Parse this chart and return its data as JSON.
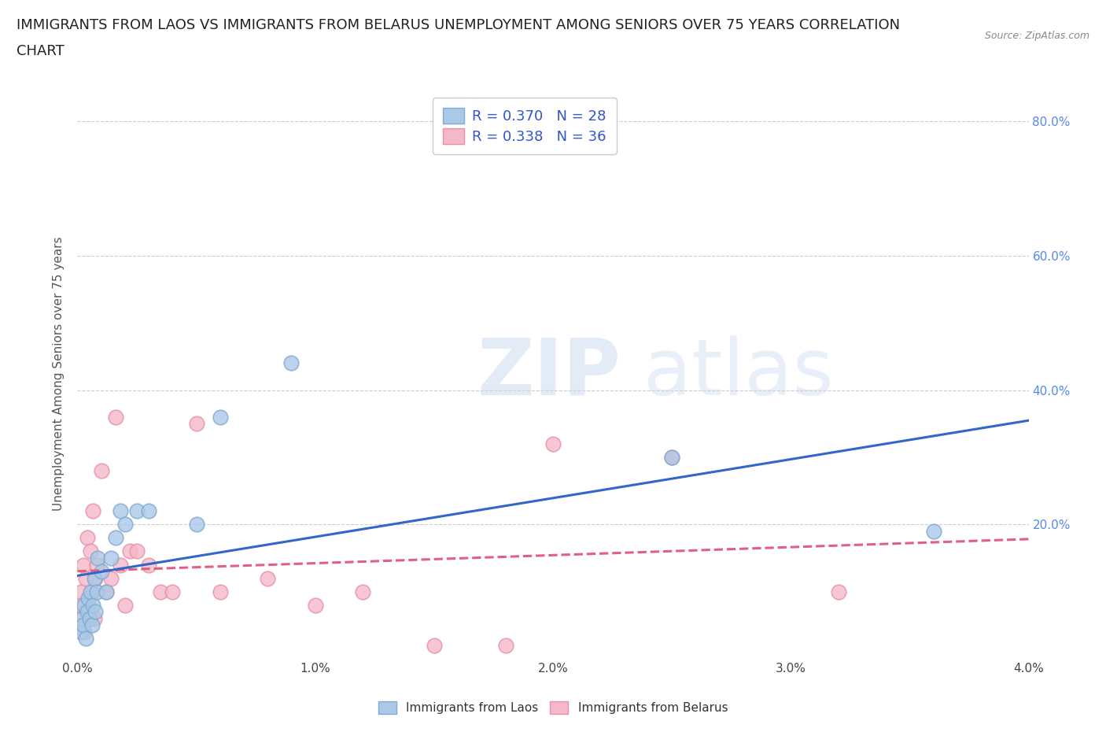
{
  "title_line1": "IMMIGRANTS FROM LAOS VS IMMIGRANTS FROM BELARUS UNEMPLOYMENT AMONG SENIORS OVER 75 YEARS CORRELATION",
  "title_line2": "CHART",
  "source": "Source: ZipAtlas.com",
  "ylabel": "Unemployment Among Seniors over 75 years",
  "xmin": 0.0,
  "xmax": 0.04,
  "ymin": 0.0,
  "ymax": 0.85,
  "xticks": [
    0.0,
    0.01,
    0.02,
    0.03,
    0.04
  ],
  "xtick_labels": [
    "0.0%",
    "1.0%",
    "2.0%",
    "3.0%",
    "4.0%"
  ],
  "yticks": [
    0.0,
    0.2,
    0.4,
    0.6,
    0.8
  ],
  "ytick_labels_right": [
    "",
    "20.0%",
    "40.0%",
    "60.0%",
    "80.0%"
  ],
  "laos_color": "#aac8e8",
  "laos_edge_color": "#80aad0",
  "belarus_color": "#f5b8c8",
  "belarus_edge_color": "#e890a8",
  "laos_R": 0.37,
  "laos_N": 28,
  "belarus_R": 0.338,
  "belarus_N": 36,
  "laos_line_color": "#3366cc",
  "belarus_line_color": "#e06080",
  "laos_x": [
    0.00015,
    0.0002,
    0.00025,
    0.0003,
    0.00035,
    0.0004,
    0.00045,
    0.0005,
    0.00055,
    0.0006,
    0.00065,
    0.0007,
    0.00075,
    0.0008,
    0.00085,
    0.001,
    0.0012,
    0.0014,
    0.0016,
    0.0018,
    0.002,
    0.0025,
    0.003,
    0.005,
    0.006,
    0.009,
    0.025,
    0.036
  ],
  "laos_y": [
    0.04,
    0.06,
    0.05,
    0.08,
    0.03,
    0.07,
    0.09,
    0.06,
    0.1,
    0.05,
    0.08,
    0.12,
    0.07,
    0.1,
    0.15,
    0.13,
    0.1,
    0.15,
    0.18,
    0.22,
    0.2,
    0.22,
    0.22,
    0.2,
    0.36,
    0.44,
    0.3,
    0.19
  ],
  "belarus_x": [
    0.0001,
    0.00015,
    0.0002,
    0.00025,
    0.0003,
    0.00035,
    0.0004,
    0.00045,
    0.0005,
    0.00055,
    0.0006,
    0.00065,
    0.0007,
    0.00075,
    0.0008,
    0.001,
    0.0012,
    0.0014,
    0.0016,
    0.0018,
    0.002,
    0.0022,
    0.0025,
    0.003,
    0.0035,
    0.004,
    0.005,
    0.006,
    0.008,
    0.01,
    0.012,
    0.015,
    0.018,
    0.02,
    0.025,
    0.032
  ],
  "belarus_y": [
    0.06,
    0.1,
    0.08,
    0.14,
    0.04,
    0.12,
    0.18,
    0.08,
    0.06,
    0.16,
    0.1,
    0.22,
    0.06,
    0.12,
    0.14,
    0.28,
    0.1,
    0.12,
    0.36,
    0.14,
    0.08,
    0.16,
    0.16,
    0.14,
    0.1,
    0.1,
    0.35,
    0.1,
    0.12,
    0.08,
    0.1,
    0.02,
    0.02,
    0.32,
    0.3,
    0.1
  ],
  "watermark_zip": "ZIP",
  "watermark_atlas": "atlas",
  "background_color": "#ffffff",
  "grid_color": "#cccccc",
  "title_fontsize": 13,
  "axis_label_fontsize": 11,
  "tick_fontsize": 11,
  "legend_fontsize": 13,
  "legend_color": "#3355cc"
}
